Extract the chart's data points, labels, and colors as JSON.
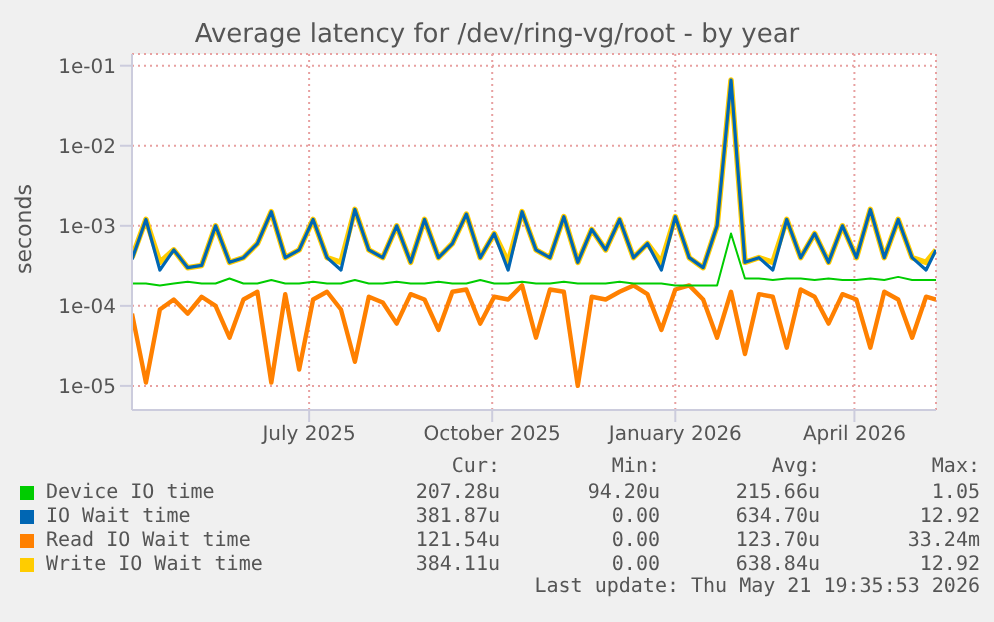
{
  "chart_data": {
    "type": "line",
    "title": "Average latency for /dev/ring-vg/root - by year",
    "ylabel": "seconds",
    "log": true,
    "grid": true,
    "legend": "bottom",
    "line_style": "solid",
    "ylim": [
      5e-06,
      0.14
    ],
    "yticks": [
      {
        "value": 1e-05,
        "label": "1e-05"
      },
      {
        "value": 0.0001,
        "label": "1e-04"
      },
      {
        "value": 0.001,
        "label": "1e-03"
      },
      {
        "value": 0.01,
        "label": "1e-02"
      },
      {
        "value": 0.1,
        "label": "1e-01"
      }
    ],
    "xlim": [
      "2025-04-03",
      "2026-05-12"
    ],
    "xticks": [
      {
        "value": "2025-07-01",
        "label": "July 2025"
      },
      {
        "value": "2025-10-01",
        "label": "October 2025"
      },
      {
        "value": "2026-01-01",
        "label": "January 2026"
      },
      {
        "value": "2026-04-01",
        "label": "April 2026"
      }
    ],
    "x": [
      "2025-04-03",
      "2025-04-10",
      "2025-04-17",
      "2025-04-24",
      "2025-05-01",
      "2025-05-08",
      "2025-05-15",
      "2025-05-22",
      "2025-05-29",
      "2025-06-05",
      "2025-06-12",
      "2025-06-19",
      "2025-06-26",
      "2025-07-03",
      "2025-07-10",
      "2025-07-17",
      "2025-07-24",
      "2025-07-31",
      "2025-08-07",
      "2025-08-14",
      "2025-08-21",
      "2025-08-28",
      "2025-09-04",
      "2025-09-11",
      "2025-09-18",
      "2025-09-25",
      "2025-10-02",
      "2025-10-09",
      "2025-10-16",
      "2025-10-23",
      "2025-10-30",
      "2025-11-06",
      "2025-11-13",
      "2025-11-20",
      "2025-11-27",
      "2025-12-04",
      "2025-12-11",
      "2025-12-18",
      "2025-12-25",
      "2026-01-01",
      "2026-01-08",
      "2026-01-15",
      "2026-01-22",
      "2026-01-29",
      "2026-02-05",
      "2026-02-12",
      "2026-02-19",
      "2026-02-26",
      "2026-03-05",
      "2026-03-12",
      "2026-03-19",
      "2026-03-26",
      "2026-04-02",
      "2026-04-09",
      "2026-04-16",
      "2026-04-23",
      "2026-04-30",
      "2026-05-07",
      "2026-05-12"
    ],
    "series": [
      {
        "name": "Device IO time",
        "color": "#00cc00",
        "values": [
          0.00019,
          0.00019,
          0.00018,
          0.00019,
          0.0002,
          0.00019,
          0.00019,
          0.00022,
          0.00019,
          0.00019,
          0.00021,
          0.00019,
          0.00019,
          0.0002,
          0.00019,
          0.00019,
          0.00021,
          0.00019,
          0.00019,
          0.0002,
          0.00019,
          0.00019,
          0.0002,
          0.00019,
          0.00019,
          0.00021,
          0.00019,
          0.00019,
          0.0002,
          0.00019,
          0.00019,
          0.0002,
          0.00019,
          0.00019,
          0.00019,
          0.0002,
          0.00019,
          0.00019,
          0.00019,
          0.00018,
          0.00018,
          0.00018,
          0.00018,
          0.0008,
          0.00022,
          0.00022,
          0.00021,
          0.00022,
          0.00022,
          0.00021,
          0.00022,
          0.00021,
          0.00021,
          0.00022,
          0.00021,
          0.00023,
          0.00021,
          0.00021,
          0.00021
        ]
      },
      {
        "name": "IO Wait time",
        "color": "#0066b3",
        "values": [
          0.00038,
          0.0012,
          0.00028,
          0.0005,
          0.0003,
          0.00032,
          0.001,
          0.00035,
          0.0004,
          0.0006,
          0.0015,
          0.0004,
          0.0005,
          0.0012,
          0.0004,
          0.00028,
          0.0016,
          0.0005,
          0.0004,
          0.001,
          0.00035,
          0.0012,
          0.0004,
          0.0006,
          0.0014,
          0.0004,
          0.0008,
          0.00028,
          0.0015,
          0.0005,
          0.0004,
          0.0013,
          0.00035,
          0.0009,
          0.0005,
          0.0012,
          0.0004,
          0.0006,
          0.00028,
          0.0013,
          0.0004,
          0.0003,
          0.001,
          0.066,
          0.00035,
          0.0004,
          0.00028,
          0.0012,
          0.0004,
          0.0008,
          0.00035,
          0.001,
          0.0004,
          0.0016,
          0.0004,
          0.0012,
          0.0004,
          0.00028,
          0.0005
        ]
      },
      {
        "name": "Read IO Wait time",
        "color": "#ff8000",
        "values": [
          8e-05,
          1.1e-05,
          9e-05,
          0.00012,
          8e-05,
          0.00013,
          0.0001,
          4e-05,
          0.00012,
          0.00015,
          1.1e-05,
          0.00014,
          1.6e-05,
          0.00012,
          0.00015,
          9e-05,
          2e-05,
          0.00013,
          0.00011,
          6e-05,
          0.00014,
          0.00012,
          5e-05,
          0.00015,
          0.00016,
          6e-05,
          0.00013,
          0.00012,
          0.00018,
          4e-05,
          0.00016,
          0.00015,
          1e-05,
          0.00013,
          0.00012,
          0.00015,
          0.00018,
          0.00014,
          5e-05,
          0.00016,
          0.00018,
          0.00012,
          4e-05,
          0.00015,
          2.5e-05,
          0.00014,
          0.00013,
          3e-05,
          0.00016,
          0.00013,
          6e-05,
          0.00014,
          0.00012,
          3e-05,
          0.00015,
          0.00012,
          4e-05,
          0.00013,
          0.00012
        ]
      },
      {
        "name": "Write IO Wait time",
        "color": "#ffcc00",
        "values": [
          0.0004,
          0.0012,
          0.00035,
          0.0005,
          0.0003,
          0.00032,
          0.001,
          0.00035,
          0.0004,
          0.0006,
          0.0015,
          0.0004,
          0.0005,
          0.0012,
          0.0004,
          0.00035,
          0.0016,
          0.0005,
          0.0004,
          0.001,
          0.00035,
          0.0012,
          0.0004,
          0.0006,
          0.0014,
          0.0004,
          0.0008,
          0.00035,
          0.0015,
          0.0005,
          0.0004,
          0.0013,
          0.00035,
          0.0009,
          0.0005,
          0.0012,
          0.0004,
          0.0006,
          0.00035,
          0.0013,
          0.0004,
          0.0003,
          0.001,
          0.066,
          0.00035,
          0.0004,
          0.00035,
          0.0012,
          0.0004,
          0.0008,
          0.00035,
          0.001,
          0.0004,
          0.0016,
          0.0004,
          0.0012,
          0.0004,
          0.00035,
          0.0005
        ]
      }
    ],
    "annotations": [
      "Cur:",
      "Min:",
      "Avg:",
      "Max:",
      "207.28u",
      "94.20u",
      "215.66u",
      "1.05",
      "381.87u",
      "0.00",
      "634.70u",
      "12.92",
      "121.54u",
      "0.00",
      "123.70u",
      "33.24m",
      "384.11u",
      "0.00",
      "638.84u",
      "12.92",
      "Last update: Thu May 21 19:35:53 2026"
    ]
  }
}
